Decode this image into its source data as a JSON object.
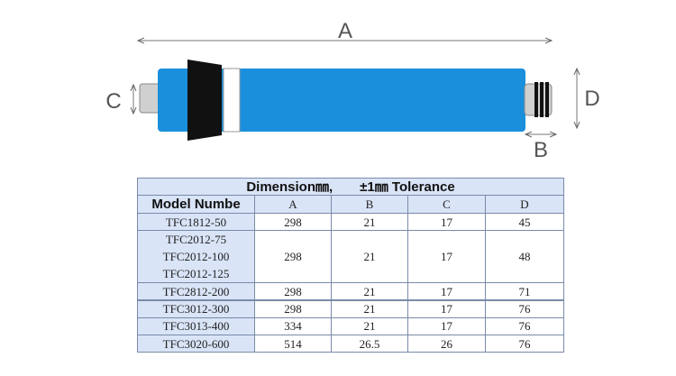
{
  "diagram": {
    "labels": {
      "a": "A",
      "b": "B",
      "c": "C",
      "d": "D"
    }
  },
  "table": {
    "title": "Dimension㎜,　　±1㎜ Tolerance",
    "header": [
      "Model Numbe",
      "A",
      "B",
      "C",
      "D"
    ],
    "rows": [
      {
        "models": [
          "TFC1812-50"
        ],
        "values": [
          "298",
          "21",
          "17",
          "45"
        ]
      },
      {
        "models": [
          "TFC2012-75",
          "TFC2012-100",
          "TFC2012-125"
        ],
        "values": [
          "298",
          "21",
          "17",
          "48"
        ]
      },
      {
        "models": [
          "TFC2812-200"
        ],
        "values": [
          "298",
          "21",
          "17",
          "71"
        ]
      },
      {
        "models": [
          "TFC3012-300"
        ],
        "values": [
          "298",
          "21",
          "17",
          "76"
        ]
      },
      {
        "models": [
          "TFC3013-400"
        ],
        "values": [
          "334",
          "21",
          "17",
          "76"
        ]
      },
      {
        "models": [
          "TFC3020-600"
        ],
        "values": [
          "514",
          "26.5",
          "26",
          "76"
        ]
      }
    ]
  }
}
